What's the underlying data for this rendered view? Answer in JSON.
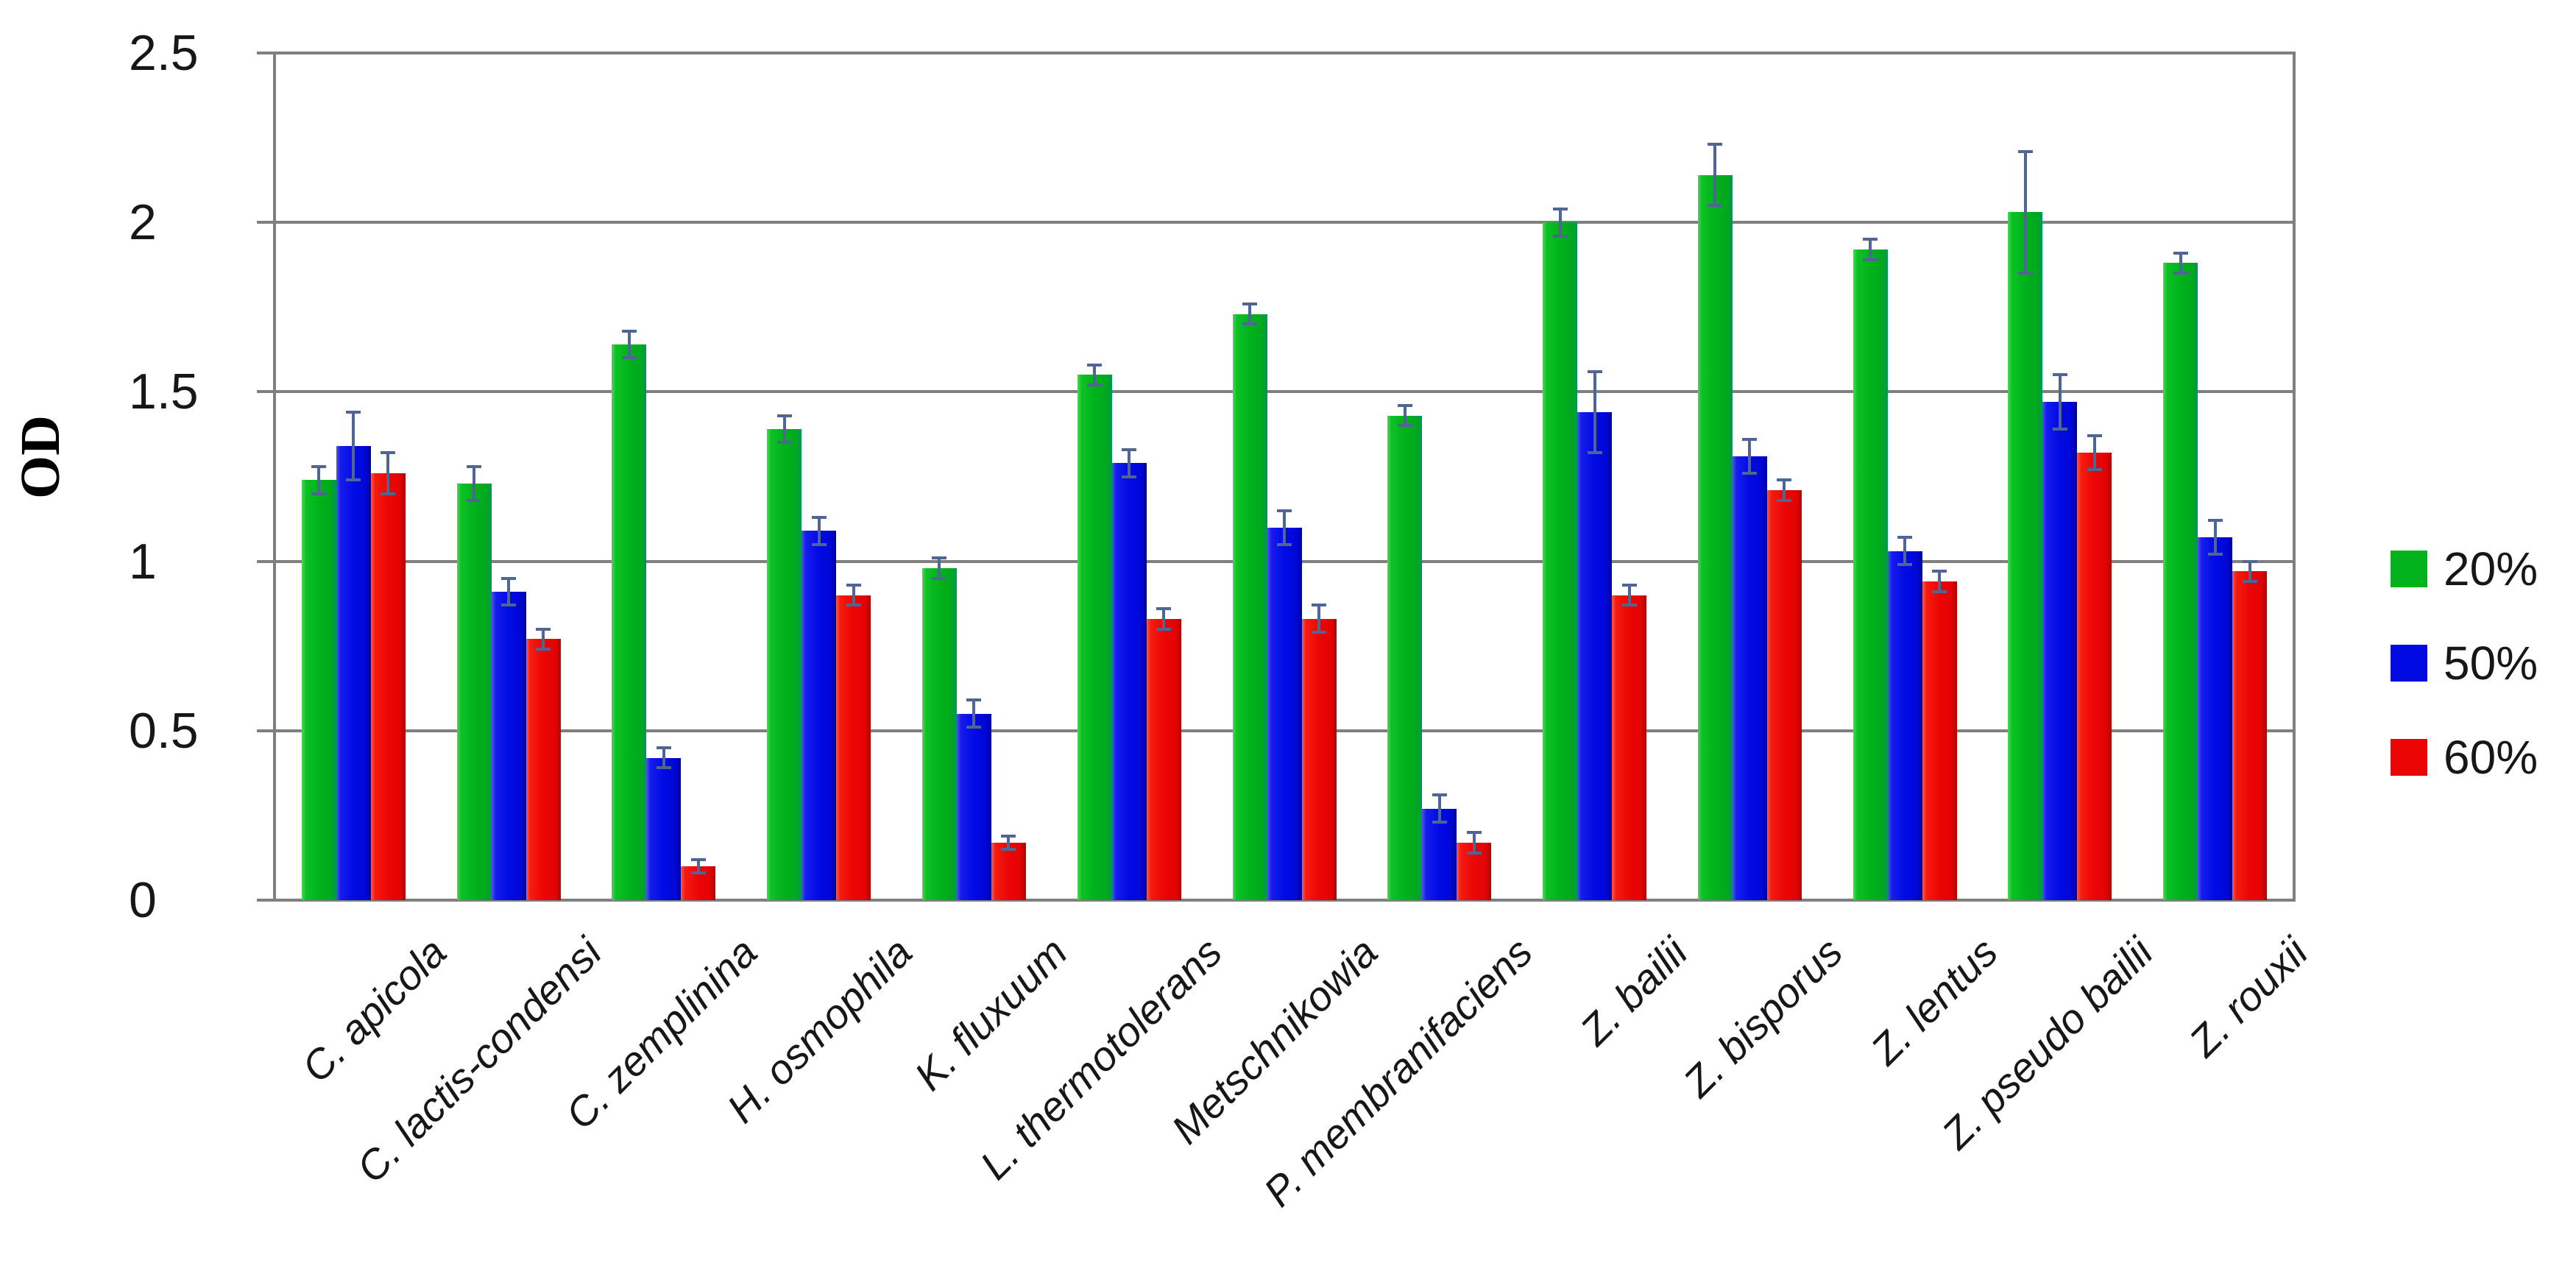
{
  "chart_data": {
    "type": "bar",
    "title": "",
    "ylabel": "OD",
    "xlabel": "",
    "ylim": [
      0,
      2.5
    ],
    "ytick_values": [
      0,
      0.5,
      1,
      1.5,
      2,
      2.5
    ],
    "ytick_labels": [
      "0",
      "0.5",
      "1",
      "1.5",
      "2",
      "2.5"
    ],
    "grid": true,
    "legend_position": "right",
    "error_bars": true,
    "categories": [
      "C. apicola",
      "C. lactis-condensi",
      "C. zemplinina",
      "H. osmophila",
      "K. fluxuum",
      "L. thermotolerans",
      "Metschnikowia",
      "P. membranifaciens",
      "Z. bailii",
      "Z. bisporus",
      "Z. lentus",
      "Z. pseudo bailii",
      "Z. rouxii"
    ],
    "series": [
      {
        "name": "20%",
        "color": "#00B21C",
        "values": [
          1.24,
          1.23,
          1.64,
          1.39,
          0.98,
          1.55,
          1.73,
          1.43,
          2.0,
          2.14,
          1.92,
          2.03,
          1.88
        ],
        "errors": [
          0.04,
          0.05,
          0.04,
          0.04,
          0.03,
          0.03,
          0.03,
          0.03,
          0.04,
          0.09,
          0.03,
          0.18,
          0.03
        ]
      },
      {
        "name": "50%",
        "color": "#000BE4",
        "values": [
          1.34,
          0.91,
          0.42,
          1.09,
          0.55,
          1.29,
          1.1,
          0.27,
          1.44,
          1.31,
          1.03,
          1.47,
          1.07
        ],
        "errors": [
          0.1,
          0.04,
          0.03,
          0.04,
          0.04,
          0.04,
          0.05,
          0.04,
          0.12,
          0.05,
          0.04,
          0.08,
          0.05
        ]
      },
      {
        "name": "60%",
        "color": "#EC0505",
        "values": [
          1.26,
          0.77,
          0.1,
          0.9,
          0.17,
          0.83,
          0.83,
          0.17,
          0.9,
          1.21,
          0.94,
          1.32,
          0.97
        ],
        "errors": [
          0.06,
          0.03,
          0.02,
          0.03,
          0.02,
          0.03,
          0.04,
          0.03,
          0.03,
          0.03,
          0.03,
          0.05,
          0.03
        ]
      }
    ],
    "colors": {
      "axis": "#7F7F7F",
      "error_bar": "#4F6694",
      "text": "#171717",
      "background": "#FFFFFF"
    }
  }
}
